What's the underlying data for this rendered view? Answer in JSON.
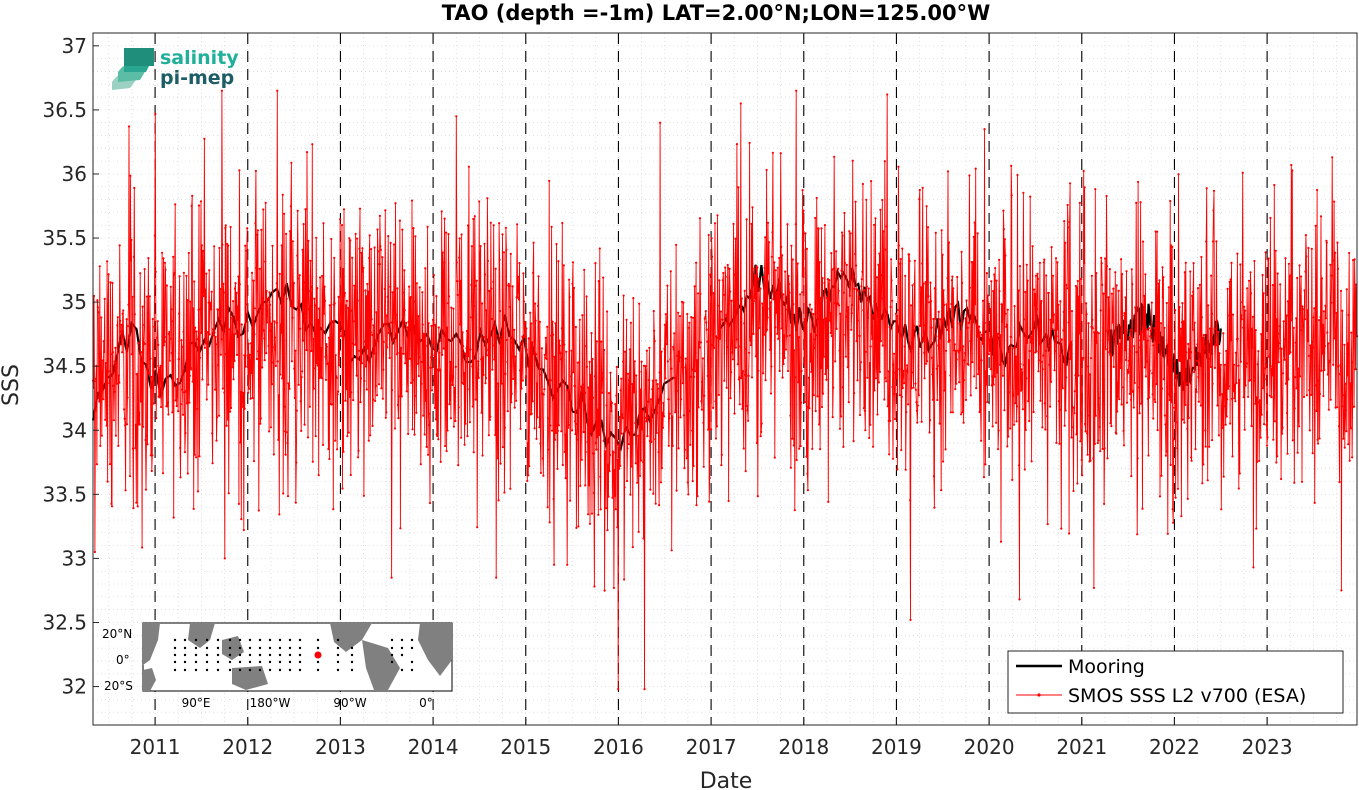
{
  "chart_data": {
    "type": "line",
    "title": "TAO (depth =-1m) LAT=2.00°N;LON=125.00°W",
    "xlabel": "Date",
    "ylabel": "SSS",
    "xlim": [
      2010.33,
      2023.97
    ],
    "ylim": [
      31.7,
      37.1
    ],
    "yticks": [
      "32",
      "32.5",
      "33",
      "33.5",
      "34",
      "34.5",
      "35",
      "35.5",
      "36",
      "36.5",
      "37"
    ],
    "xticks": [
      "2011",
      "2012",
      "2013",
      "2014",
      "2015",
      "2016",
      "2017",
      "2018",
      "2019",
      "2020",
      "2021",
      "2022",
      "2023"
    ],
    "grid": "dotted minor grid; dashed vertical lines at year boundaries",
    "legend_position": "bottom-right",
    "series": [
      {
        "name": "Mooring",
        "color": "#000000",
        "style": "solid thick line",
        "segments": [
          {
            "x": [
              2010.33,
              2010.45,
              2010.6,
              2010.75,
              2010.9,
              2011.05,
              2011.2,
              2011.4,
              2011.6,
              2011.8,
              2012.0,
              2012.2,
              2012.4,
              2012.6,
              2012.8,
              2013.0,
              2013.2,
              2013.4,
              2013.6,
              2013.8,
              2014.0,
              2014.2,
              2014.4,
              2014.6,
              2014.8,
              2015.0,
              2015.2,
              2015.4,
              2015.6,
              2015.8,
              2016.0,
              2016.2,
              2016.4,
              2016.6
            ],
            "y": [
              34.2,
              34.4,
              34.6,
              34.8,
              34.5,
              34.3,
              34.4,
              34.6,
              34.8,
              34.9,
              34.8,
              34.9,
              35.1,
              34.9,
              34.8,
              34.7,
              34.6,
              34.7,
              34.8,
              34.8,
              34.7,
              34.7,
              34.6,
              34.7,
              34.8,
              34.6,
              34.4,
              34.3,
              34.2,
              34.0,
              33.9,
              34.0,
              34.2,
              34.3
            ]
          },
          {
            "x": [
              2017.1,
              2017.3,
              2017.5,
              2017.7,
              2017.9,
              2018.1,
              2018.3,
              2018.5,
              2018.7,
              2018.9,
              2019.1,
              2019.3,
              2019.5,
              2019.7,
              2019.9,
              2020.1,
              2020.3,
              2020.5,
              2020.7,
              2020.9
            ],
            "y": [
              34.8,
              35.0,
              35.2,
              35.1,
              34.9,
              34.8,
              35.1,
              35.2,
              35.0,
              34.9,
              34.7,
              34.7,
              34.8,
              34.9,
              34.8,
              34.6,
              34.7,
              34.8,
              34.7,
              34.6
            ]
          },
          {
            "x": [
              2021.3,
              2021.5,
              2021.7,
              2021.9,
              2022.1,
              2022.3,
              2022.5
            ],
            "y": [
              34.7,
              34.8,
              34.9,
              34.6,
              34.4,
              34.6,
              34.8
            ]
          }
        ]
      },
      {
        "name": "SMOS SSS L2 v700 (ESA)",
        "color": "#ff0000",
        "style": "thin line with point markers",
        "x_start": 2010.33,
        "x_end": 2023.97,
        "baseline": {
          "x": [
            2010.33,
            2010.5,
            2011.0,
            2011.5,
            2012.0,
            2012.5,
            2013.0,
            2013.5,
            2014.0,
            2014.5,
            2015.0,
            2015.5,
            2016.0,
            2016.5,
            2017.0,
            2017.5,
            2018.0,
            2018.5,
            2019.0,
            2019.5,
            2020.0,
            2020.5,
            2021.0,
            2021.5,
            2022.0,
            2022.5,
            2023.0,
            2023.5,
            2023.97
          ],
          "y": [
            34.3,
            34.5,
            34.5,
            34.8,
            34.7,
            34.9,
            34.7,
            34.7,
            34.6,
            34.7,
            34.6,
            34.3,
            34.0,
            34.3,
            34.6,
            34.9,
            34.8,
            35.0,
            34.7,
            34.7,
            34.6,
            34.7,
            34.6,
            34.7,
            34.5,
            34.6,
            34.6,
            34.7,
            34.7
          ]
        },
        "spikes": [
          {
            "x": 2010.35,
            "y": 33.05
          },
          {
            "x": 2010.72,
            "y": 36.37
          },
          {
            "x": 2011.0,
            "y": 36.47
          },
          {
            "x": 2011.72,
            "y": 36.65
          },
          {
            "x": 2011.75,
            "y": 33.0
          },
          {
            "x": 2012.32,
            "y": 36.65
          },
          {
            "x": 2013.55,
            "y": 32.85
          },
          {
            "x": 2014.25,
            "y": 36.45
          },
          {
            "x": 2014.68,
            "y": 32.85
          },
          {
            "x": 2015.95,
            "y": 32.77
          },
          {
            "x": 2016.0,
            "y": 31.98
          },
          {
            "x": 2016.28,
            "y": 31.98
          },
          {
            "x": 2016.45,
            "y": 36.4
          },
          {
            "x": 2017.32,
            "y": 36.55
          },
          {
            "x": 2017.92,
            "y": 36.65
          },
          {
            "x": 2018.9,
            "y": 36.62
          },
          {
            "x": 2019.15,
            "y": 32.52
          },
          {
            "x": 2019.95,
            "y": 36.35
          },
          {
            "x": 2020.33,
            "y": 32.68
          },
          {
            "x": 2021.13,
            "y": 32.77
          },
          {
            "x": 2022.85,
            "y": 32.93
          },
          {
            "x": 2023.7,
            "y": 36.13
          },
          {
            "x": 2023.8,
            "y": 32.75
          }
        ]
      }
    ]
  },
  "logo": {
    "line1": "salinity",
    "line2": "pi-mep"
  },
  "inset_map": {
    "lat_labels": [
      "20°N",
      "0°",
      "20°S"
    ],
    "lon_labels": [
      "90°E",
      "180°W",
      "90°W",
      "0°"
    ],
    "marker_color": "#ff0000",
    "land_color": "#808080"
  }
}
